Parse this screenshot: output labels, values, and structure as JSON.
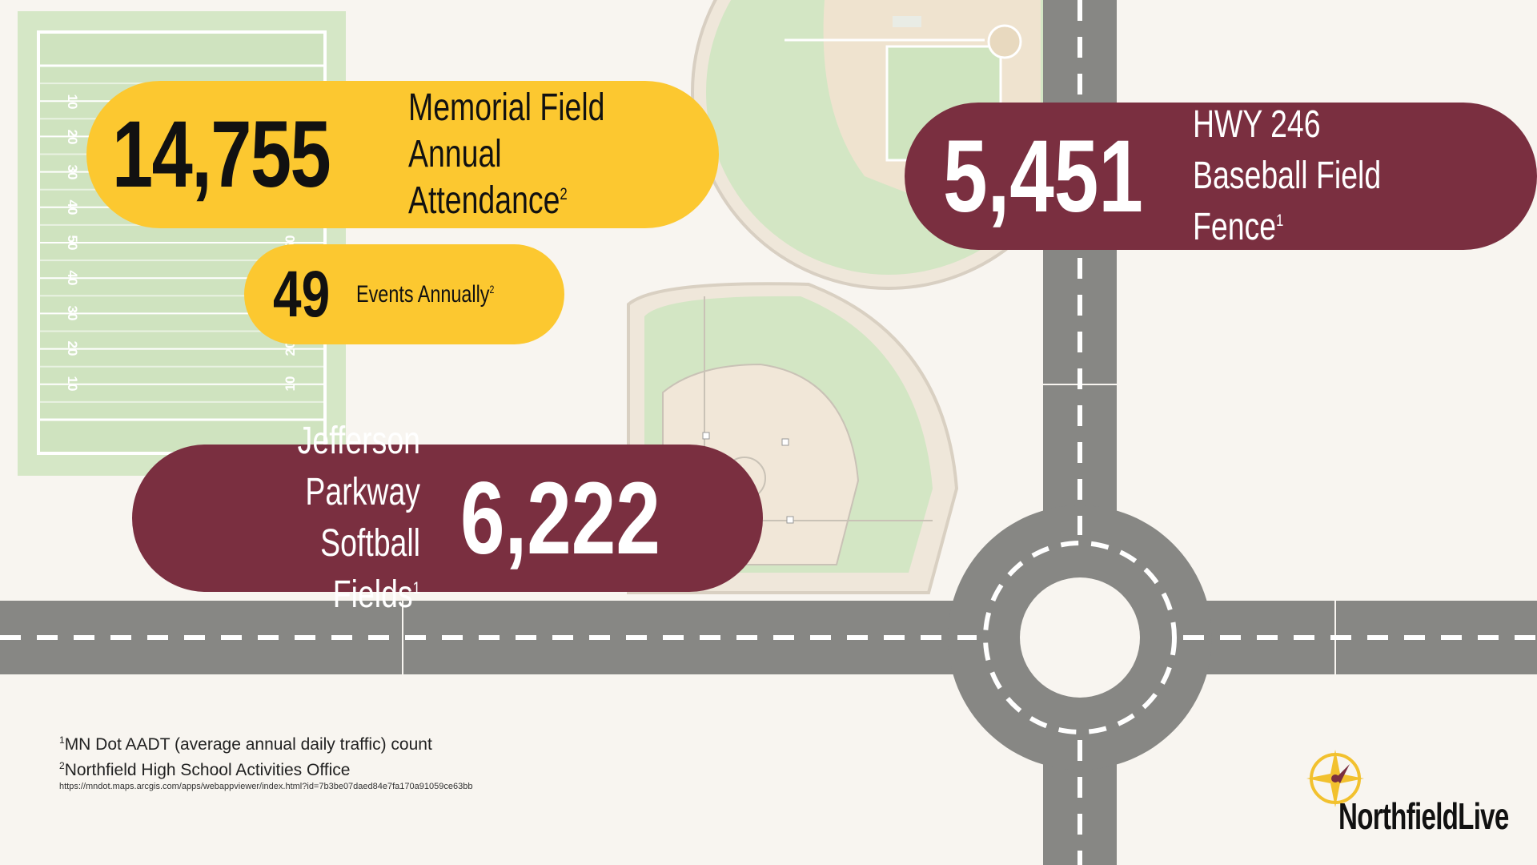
{
  "stats": {
    "memorial": {
      "value": "14,755",
      "line1": "Memorial Field",
      "line2": "Annual Attendance",
      "footnote": "2"
    },
    "events": {
      "value": "49",
      "label": "Events Annually",
      "footnote": "2"
    },
    "hwy": {
      "value": "5,451",
      "line1": "HWY 246",
      "line2": "Baseball Field Fence",
      "footnote": "1"
    },
    "jefferson": {
      "value": "6,222",
      "line1": "Jefferson Parkway",
      "line2": "Softball Fields",
      "footnote": "1"
    }
  },
  "football_yard_numbers": [
    "10",
    "20",
    "30",
    "40",
    "50",
    "40",
    "30",
    "20",
    "10"
  ],
  "footnotes": [
    {
      "mark": "1",
      "text": "MN Dot AADT (average annual daily traffic) count"
    },
    {
      "mark": "2",
      "text": "Northfield High School Activities Office"
    }
  ],
  "source_url": "https://mndot.maps.arcgis.com/apps/webappviewer/index.html?id=7b3be07daed84e7fa170a91059ce63bb",
  "logo": {
    "text": "NorthfieldLive",
    "icon": "compass-icon"
  },
  "colors": {
    "background": "#f8f5f0",
    "yellow": "#fcc830",
    "maroon": "#7a2f40",
    "road": "#878784",
    "field_green": "#d3e6c4",
    "infield": "#f1e7d8"
  }
}
